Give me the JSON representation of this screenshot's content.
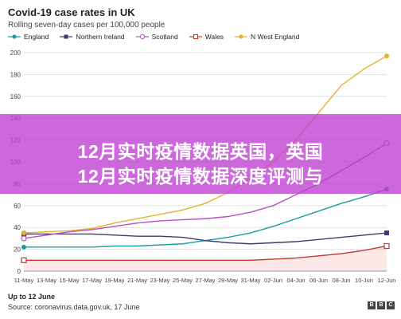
{
  "chart_data": {
    "type": "line",
    "title": "Covid-19 case rates in UK",
    "subtitle": "Rolling seven-day cases per 100,000 people",
    "ylim": [
      0,
      200
    ],
    "yticks": [
      0,
      20,
      40,
      60,
      80,
      100,
      120,
      140,
      160,
      180,
      200
    ],
    "grid": "horizontal",
    "legend_position": "top",
    "x": [
      "11-May",
      "13-May",
      "15-May",
      "17-May",
      "19-May",
      "21-May",
      "23-May",
      "25-May",
      "27-May",
      "29-May",
      "31-May",
      "02-Jun",
      "04-Jun",
      "06-Jun",
      "08-Jun",
      "10-Jun",
      "12-Jun"
    ],
    "series": [
      {
        "name": "England",
        "color": "#1b9e9e",
        "marker": "circle",
        "values": [
          22,
          22,
          22,
          22,
          23,
          23,
          24,
          25,
          28,
          31,
          35,
          41,
          48,
          55,
          62,
          68,
          75
        ]
      },
      {
        "name": "Northern Ireland",
        "color": "#3d3a6e",
        "marker": "square",
        "values": [
          34,
          34,
          34,
          34,
          33,
          32,
          32,
          31,
          28,
          26,
          25,
          26,
          27,
          29,
          31,
          33,
          35
        ]
      },
      {
        "name": "Scotland",
        "color": "#b84fc4",
        "marker": "circle-open",
        "values": [
          30,
          33,
          36,
          38,
          41,
          44,
          46,
          47,
          48,
          50,
          54,
          60,
          70,
          80,
          92,
          104,
          117
        ]
      },
      {
        "name": "Wales",
        "color": "#c0392b",
        "marker": "square-open",
        "values": [
          10,
          10,
          10,
          10,
          10,
          10,
          10,
          10,
          10,
          10,
          10,
          11,
          12,
          14,
          16,
          19,
          23
        ]
      },
      {
        "name": "N West England",
        "color": "#e8b030",
        "marker": "circle",
        "values": [
          35,
          36,
          37,
          39,
          44,
          48,
          52,
          56,
          62,
          72,
          85,
          100,
          120,
          145,
          170,
          185,
          197
        ]
      }
    ]
  },
  "banner": {
    "line1": "12月实时疫情数据英国，英国",
    "line2": "12月实时疫情数据深度评测与"
  },
  "footer": {
    "line1": "Up to 12 June",
    "line2": "Source: coronavirus.data.gov.uk, 17 June",
    "logo": [
      "B",
      "B",
      "C"
    ]
  }
}
